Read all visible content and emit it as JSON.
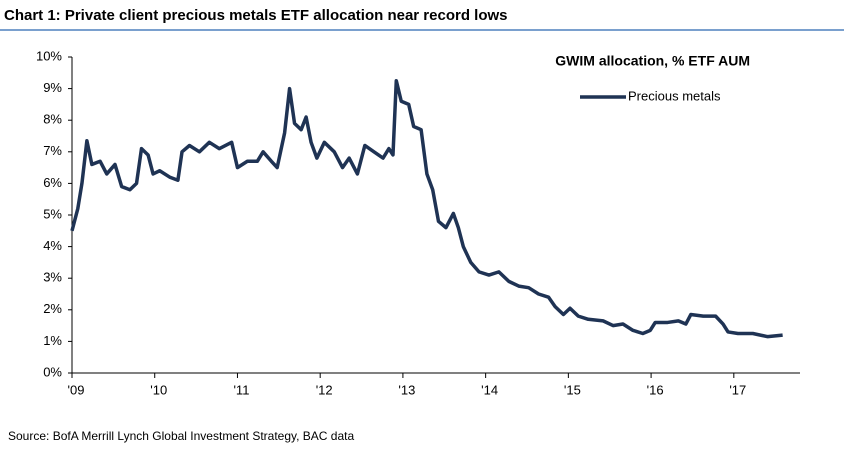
{
  "chart_data": {
    "type": "line",
    "title": "Chart 1: Private client precious metals ETF allocation near record lows",
    "subtitle": "GWIM allocation, % ETF AUM",
    "source": "Source: BofA Merrill Lynch Global Investment Strategy, BAC data",
    "x": [
      2009.0,
      2009.07,
      2009.12,
      2009.18,
      2009.24,
      2009.34,
      2009.42,
      2009.52,
      2009.6,
      2009.7,
      2009.78,
      2009.84,
      2009.92,
      2009.98,
      2010.06,
      2010.18,
      2010.28,
      2010.33,
      2010.42,
      2010.54,
      2010.66,
      2010.78,
      2010.93,
      2011.0,
      2011.12,
      2011.24,
      2011.31,
      2011.41,
      2011.48,
      2011.57,
      2011.63,
      2011.69,
      2011.77,
      2011.83,
      2011.89,
      2011.96,
      2012.05,
      2012.17,
      2012.27,
      2012.35,
      2012.45,
      2012.54,
      2012.65,
      2012.76,
      2012.83,
      2012.88,
      2012.92,
      2012.98,
      2013.07,
      2013.13,
      2013.22,
      2013.29,
      2013.36,
      2013.43,
      2013.52,
      2013.61,
      2013.67,
      2013.73,
      2013.82,
      2013.92,
      2014.04,
      2014.16,
      2014.28,
      2014.4,
      2014.52,
      2014.64,
      2014.76,
      2014.84,
      2014.94,
      2015.02,
      2015.12,
      2015.24,
      2015.42,
      2015.54,
      2015.66,
      2015.78,
      2015.9,
      2015.99,
      2016.05,
      2016.2,
      2016.33,
      2016.42,
      2016.48,
      2016.63,
      2016.78,
      2016.87,
      2016.93,
      2017.05,
      2017.23,
      2017.41,
      2017.59
    ],
    "series": [
      {
        "name": "Precious metals",
        "color": "#1f3354",
        "values": [
          4.5,
          5.2,
          6.0,
          7.35,
          6.6,
          6.7,
          6.3,
          6.6,
          5.9,
          5.8,
          6.0,
          7.1,
          6.9,
          6.3,
          6.4,
          6.2,
          6.1,
          7.0,
          7.2,
          7.0,
          7.3,
          7.1,
          7.3,
          6.5,
          6.7,
          6.7,
          7.0,
          6.7,
          6.5,
          7.6,
          9.0,
          7.9,
          7.7,
          8.1,
          7.3,
          6.8,
          7.3,
          7.0,
          6.5,
          6.8,
          6.3,
          7.2,
          7.0,
          6.8,
          7.1,
          6.9,
          9.25,
          8.6,
          8.5,
          7.8,
          7.7,
          6.3,
          5.8,
          4.8,
          4.6,
          5.05,
          4.6,
          4.0,
          3.5,
          3.2,
          3.1,
          3.2,
          2.9,
          2.75,
          2.7,
          2.5,
          2.4,
          2.1,
          1.85,
          2.05,
          1.8,
          1.7,
          1.65,
          1.5,
          1.55,
          1.35,
          1.25,
          1.35,
          1.6,
          1.6,
          1.65,
          1.55,
          1.85,
          1.8,
          1.8,
          1.55,
          1.3,
          1.25,
          1.25,
          1.15,
          1.2
        ]
      }
    ],
    "xlim": [
      2009,
      2017.8
    ],
    "xticks": [
      {
        "value": 2009,
        "label": "'09"
      },
      {
        "value": 2010,
        "label": "'10"
      },
      {
        "value": 2011,
        "label": "'11"
      },
      {
        "value": 2012,
        "label": "'12"
      },
      {
        "value": 2013,
        "label": "'13"
      },
      {
        "value": 2014,
        "label": "'14"
      },
      {
        "value": 2015,
        "label": "'15"
      },
      {
        "value": 2016,
        "label": "'16"
      },
      {
        "value": 2017,
        "label": "'17"
      }
    ],
    "ylim": [
      0,
      10
    ],
    "yticks": [
      {
        "value": 0,
        "label": "0%"
      },
      {
        "value": 1,
        "label": "1%"
      },
      {
        "value": 2,
        "label": "2%"
      },
      {
        "value": 3,
        "label": "3%"
      },
      {
        "value": 4,
        "label": "4%"
      },
      {
        "value": 5,
        "label": "5%"
      },
      {
        "value": 6,
        "label": "6%"
      },
      {
        "value": 7,
        "label": "7%"
      },
      {
        "value": 8,
        "label": "8%"
      },
      {
        "value": 9,
        "label": "9%"
      },
      {
        "value": 10,
        "label": "10%"
      }
    ],
    "legend": "upper right"
  }
}
